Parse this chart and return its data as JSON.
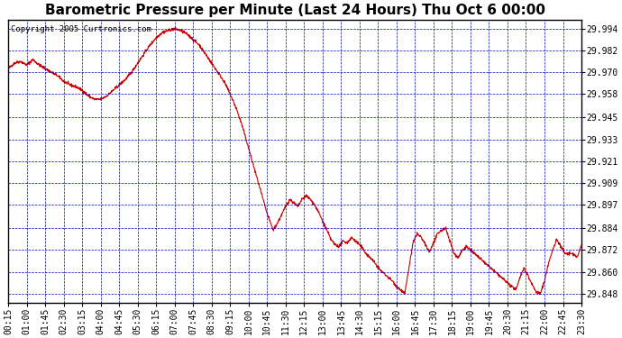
{
  "title": "Barometric Pressure per Minute (Last 24 Hours) Thu Oct 6 00:00",
  "copyright": "Copyright 2005 Curtronics.com",
  "yticks": [
    29.848,
    29.86,
    29.872,
    29.884,
    29.897,
    29.909,
    29.921,
    29.933,
    29.945,
    29.958,
    29.97,
    29.982,
    29.994
  ],
  "ylim": [
    29.843,
    29.999
  ],
  "xtick_labels": [
    "00:15",
    "01:00",
    "01:45",
    "02:30",
    "03:15",
    "04:00",
    "04:45",
    "05:30",
    "06:15",
    "07:00",
    "07:45",
    "08:30",
    "09:15",
    "10:00",
    "10:45",
    "11:30",
    "12:15",
    "13:00",
    "13:45",
    "14:30",
    "15:15",
    "16:00",
    "16:45",
    "17:30",
    "18:15",
    "19:00",
    "19:45",
    "20:30",
    "21:15",
    "22:00",
    "22:45",
    "23:30"
  ],
  "background_color": "#ffffff",
  "plot_bg_color": "#ffffff",
  "grid_color": "#0000bb",
  "line_color": "#cc0000",
  "title_fontsize": 11,
  "tick_fontsize": 7,
  "copyright_fontsize": 6.5,
  "control_points": [
    [
      15,
      29.972
    ],
    [
      30,
      29.975
    ],
    [
      45,
      29.976
    ],
    [
      60,
      29.974
    ],
    [
      75,
      29.977
    ],
    [
      90,
      29.974
    ],
    [
      105,
      29.972
    ],
    [
      120,
      29.97
    ],
    [
      135,
      29.968
    ],
    [
      150,
      29.965
    ],
    [
      165,
      29.963
    ],
    [
      180,
      29.962
    ],
    [
      195,
      29.96
    ],
    [
      210,
      29.957
    ],
    [
      225,
      29.955
    ],
    [
      240,
      29.955
    ],
    [
      255,
      29.957
    ],
    [
      270,
      29.96
    ],
    [
      285,
      29.963
    ],
    [
      300,
      29.966
    ],
    [
      315,
      29.97
    ],
    [
      330,
      29.975
    ],
    [
      345,
      29.98
    ],
    [
      360,
      29.985
    ],
    [
      375,
      29.989
    ],
    [
      390,
      29.992
    ],
    [
      405,
      29.993
    ],
    [
      420,
      29.994
    ],
    [
      435,
      29.993
    ],
    [
      450,
      29.991
    ],
    [
      465,
      29.988
    ],
    [
      480,
      29.985
    ],
    [
      495,
      29.98
    ],
    [
      510,
      29.975
    ],
    [
      525,
      29.97
    ],
    [
      540,
      29.965
    ],
    [
      555,
      29.958
    ],
    [
      570,
      29.95
    ],
    [
      585,
      29.94
    ],
    [
      600,
      29.928
    ],
    [
      615,
      29.916
    ],
    [
      630,
      29.904
    ],
    [
      645,
      29.892
    ],
    [
      660,
      29.883
    ],
    [
      675,
      29.889
    ],
    [
      690,
      29.896
    ],
    [
      700,
      29.9
    ],
    [
      710,
      29.898
    ],
    [
      720,
      29.896
    ],
    [
      730,
      29.9
    ],
    [
      740,
      29.902
    ],
    [
      750,
      29.9
    ],
    [
      760,
      29.897
    ],
    [
      770,
      29.893
    ],
    [
      780,
      29.888
    ],
    [
      790,
      29.883
    ],
    [
      800,
      29.878
    ],
    [
      810,
      29.875
    ],
    [
      820,
      29.874
    ],
    [
      830,
      29.877
    ],
    [
      840,
      29.876
    ],
    [
      850,
      29.879
    ],
    [
      860,
      29.877
    ],
    [
      870,
      29.875
    ],
    [
      880,
      29.872
    ],
    [
      890,
      29.869
    ],
    [
      900,
      29.867
    ],
    [
      910,
      29.864
    ],
    [
      920,
      29.861
    ],
    [
      930,
      29.859
    ],
    [
      940,
      29.857
    ],
    [
      950,
      29.855
    ],
    [
      960,
      29.852
    ],
    [
      970,
      29.85
    ],
    [
      980,
      29.848
    ],
    [
      990,
      29.862
    ],
    [
      1000,
      29.876
    ],
    [
      1010,
      29.881
    ],
    [
      1020,
      29.879
    ],
    [
      1030,
      29.875
    ],
    [
      1040,
      29.871
    ],
    [
      1050,
      29.876
    ],
    [
      1060,
      29.881
    ],
    [
      1070,
      29.883
    ],
    [
      1080,
      29.884
    ],
    [
      1090,
      29.877
    ],
    [
      1100,
      29.87
    ],
    [
      1110,
      29.868
    ],
    [
      1120,
      29.872
    ],
    [
      1130,
      29.874
    ],
    [
      1140,
      29.872
    ],
    [
      1150,
      29.87
    ],
    [
      1160,
      29.868
    ],
    [
      1170,
      29.866
    ],
    [
      1180,
      29.864
    ],
    [
      1190,
      29.862
    ],
    [
      1200,
      29.86
    ],
    [
      1210,
      29.858
    ],
    [
      1220,
      29.856
    ],
    [
      1230,
      29.854
    ],
    [
      1240,
      29.852
    ],
    [
      1250,
      29.85
    ],
    [
      1260,
      29.857
    ],
    [
      1270,
      29.862
    ],
    [
      1280,
      29.858
    ],
    [
      1290,
      29.853
    ],
    [
      1300,
      29.849
    ],
    [
      1310,
      29.848
    ],
    [
      1320,
      29.855
    ],
    [
      1330,
      29.865
    ],
    [
      1340,
      29.872
    ],
    [
      1350,
      29.878
    ],
    [
      1360,
      29.874
    ],
    [
      1370,
      29.87
    ],
    [
      1380,
      29.87
    ],
    [
      1390,
      29.87
    ],
    [
      1400,
      29.868
    ],
    [
      1410,
      29.875
    ]
  ]
}
